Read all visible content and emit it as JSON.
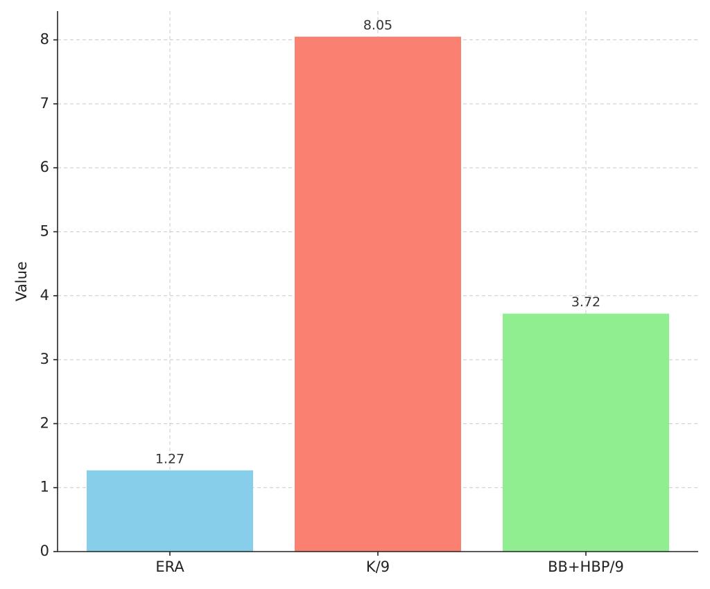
{
  "chart_data": {
    "type": "bar",
    "y_label": "Value",
    "categories": [
      "ERA",
      "K/9",
      "BB+HBP/9"
    ],
    "values": [
      1.27,
      8.05,
      3.72
    ],
    "colors": [
      "#87ceeb",
      "#fa8072",
      "#90ee90"
    ],
    "ylim": [
      0,
      8.45
    ],
    "yticks": [
      0,
      1,
      2,
      3,
      4,
      5,
      6,
      7,
      8
    ],
    "grid": true,
    "value_labels_shown": true
  }
}
